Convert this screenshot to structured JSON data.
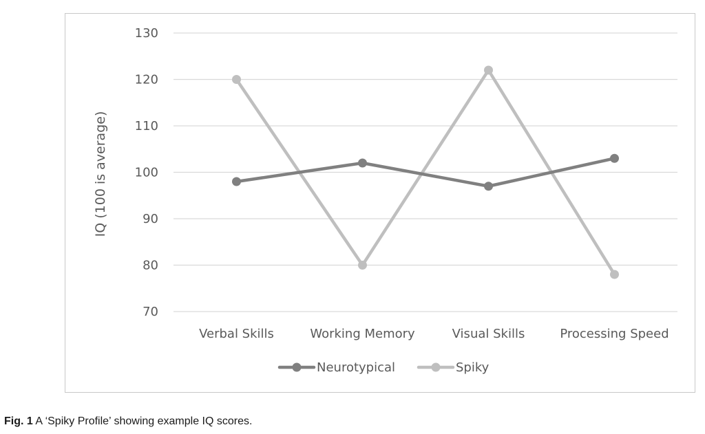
{
  "chart_data": {
    "type": "line",
    "title": "",
    "xlabel": "",
    "ylabel": "IQ (100 is average)",
    "categories": [
      "Verbal Skills",
      "Working Memory",
      "Visual Skills",
      "Processing Speed"
    ],
    "series": [
      {
        "name": "Neurotypical",
        "values": [
          98,
          102,
          97,
          103
        ],
        "color": "#808080"
      },
      {
        "name": "Spiky",
        "values": [
          120,
          80,
          122,
          78
        ],
        "color": "#bfbfbf"
      }
    ],
    "ylim": [
      70,
      130
    ],
    "yticks": [
      70,
      80,
      90,
      100,
      110,
      120,
      130
    ],
    "grid": true,
    "legend": "bottom"
  },
  "caption": {
    "label": "Fig. 1",
    "text": " A ‘Spiky Profile’ showing example IQ scores."
  }
}
